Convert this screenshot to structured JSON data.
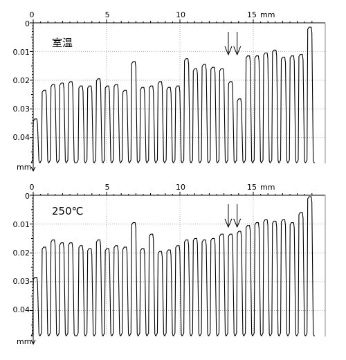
{
  "chart_data": [
    {
      "type": "line",
      "condition_label": "室温",
      "x_ticks": [
        "0",
        "5",
        "10",
        "15"
      ],
      "x_unit": "mm",
      "y_ticks": [
        "0",
        "0.01",
        "0.02",
        "0.03",
        "0.04"
      ],
      "y_unit": "mm",
      "xlim": [
        0,
        19.2
      ],
      "ylim": [
        0,
        0.049
      ],
      "y_inverted": true,
      "grid": true,
      "arrows_x": [
        13.3,
        13.9
      ],
      "peaks": [
        {
          "x": 0.2,
          "depth": 0.0335
        },
        {
          "x": 0.8,
          "depth": 0.0235
        },
        {
          "x": 1.4,
          "depth": 0.0215
        },
        {
          "x": 2.0,
          "depth": 0.021
        },
        {
          "x": 2.6,
          "depth": 0.0205
        },
        {
          "x": 3.3,
          "depth": 0.022
        },
        {
          "x": 3.9,
          "depth": 0.022
        },
        {
          "x": 4.5,
          "depth": 0.0195
        },
        {
          "x": 5.1,
          "depth": 0.022
        },
        {
          "x": 5.7,
          "depth": 0.0215
        },
        {
          "x": 6.3,
          "depth": 0.0235
        },
        {
          "x": 6.9,
          "depth": 0.0135
        },
        {
          "x": 7.5,
          "depth": 0.0225
        },
        {
          "x": 8.1,
          "depth": 0.022
        },
        {
          "x": 8.7,
          "depth": 0.0205
        },
        {
          "x": 9.3,
          "depth": 0.0225
        },
        {
          "x": 9.9,
          "depth": 0.022
        },
        {
          "x": 10.5,
          "depth": 0.0125
        },
        {
          "x": 11.1,
          "depth": 0.016
        },
        {
          "x": 11.7,
          "depth": 0.0145
        },
        {
          "x": 12.3,
          "depth": 0.0155
        },
        {
          "x": 12.9,
          "depth": 0.016
        },
        {
          "x": 13.5,
          "depth": 0.0205
        },
        {
          "x": 14.1,
          "depth": 0.0265
        },
        {
          "x": 14.7,
          "depth": 0.0115
        },
        {
          "x": 15.3,
          "depth": 0.0115
        },
        {
          "x": 15.9,
          "depth": 0.0105
        },
        {
          "x": 16.5,
          "depth": 0.0095
        },
        {
          "x": 17.1,
          "depth": 0.012
        },
        {
          "x": 17.7,
          "depth": 0.0115
        },
        {
          "x": 18.3,
          "depth": 0.011
        },
        {
          "x": 18.9,
          "depth": 0.0015
        }
      ]
    },
    {
      "type": "line",
      "condition_label": "250℃",
      "x_ticks": [
        "0",
        "5",
        "10",
        "15"
      ],
      "x_unit": "mm",
      "y_ticks": [
        "0",
        "0.01",
        "0.02",
        "0.03",
        "0.04"
      ],
      "y_unit": "mm",
      "xlim": [
        0,
        19.2
      ],
      "ylim": [
        0,
        0.049
      ],
      "y_inverted": true,
      "grid": true,
      "arrows_x": [
        13.3,
        13.9
      ],
      "peaks": [
        {
          "x": 0.2,
          "depth": 0.0285
        },
        {
          "x": 0.8,
          "depth": 0.018
        },
        {
          "x": 1.4,
          "depth": 0.0155
        },
        {
          "x": 2.0,
          "depth": 0.0165
        },
        {
          "x": 2.6,
          "depth": 0.0165
        },
        {
          "x": 3.3,
          "depth": 0.0175
        },
        {
          "x": 3.9,
          "depth": 0.0185
        },
        {
          "x": 4.5,
          "depth": 0.0155
        },
        {
          "x": 5.1,
          "depth": 0.0185
        },
        {
          "x": 5.7,
          "depth": 0.0175
        },
        {
          "x": 6.3,
          "depth": 0.018
        },
        {
          "x": 6.9,
          "depth": 0.0095
        },
        {
          "x": 7.5,
          "depth": 0.0185
        },
        {
          "x": 8.1,
          "depth": 0.0135
        },
        {
          "x": 8.7,
          "depth": 0.0195
        },
        {
          "x": 9.3,
          "depth": 0.019
        },
        {
          "x": 9.9,
          "depth": 0.0175
        },
        {
          "x": 10.5,
          "depth": 0.0155
        },
        {
          "x": 11.1,
          "depth": 0.015
        },
        {
          "x": 11.7,
          "depth": 0.0155
        },
        {
          "x": 12.3,
          "depth": 0.015
        },
        {
          "x": 12.9,
          "depth": 0.0135
        },
        {
          "x": 13.5,
          "depth": 0.0135
        },
        {
          "x": 14.1,
          "depth": 0.0125
        },
        {
          "x": 14.7,
          "depth": 0.0105
        },
        {
          "x": 15.3,
          "depth": 0.0095
        },
        {
          "x": 15.9,
          "depth": 0.0085
        },
        {
          "x": 16.5,
          "depth": 0.009
        },
        {
          "x": 17.1,
          "depth": 0.0085
        },
        {
          "x": 17.7,
          "depth": 0.0095
        },
        {
          "x": 18.3,
          "depth": 0.006
        },
        {
          "x": 18.9,
          "depth": 0.0005
        }
      ]
    }
  ]
}
